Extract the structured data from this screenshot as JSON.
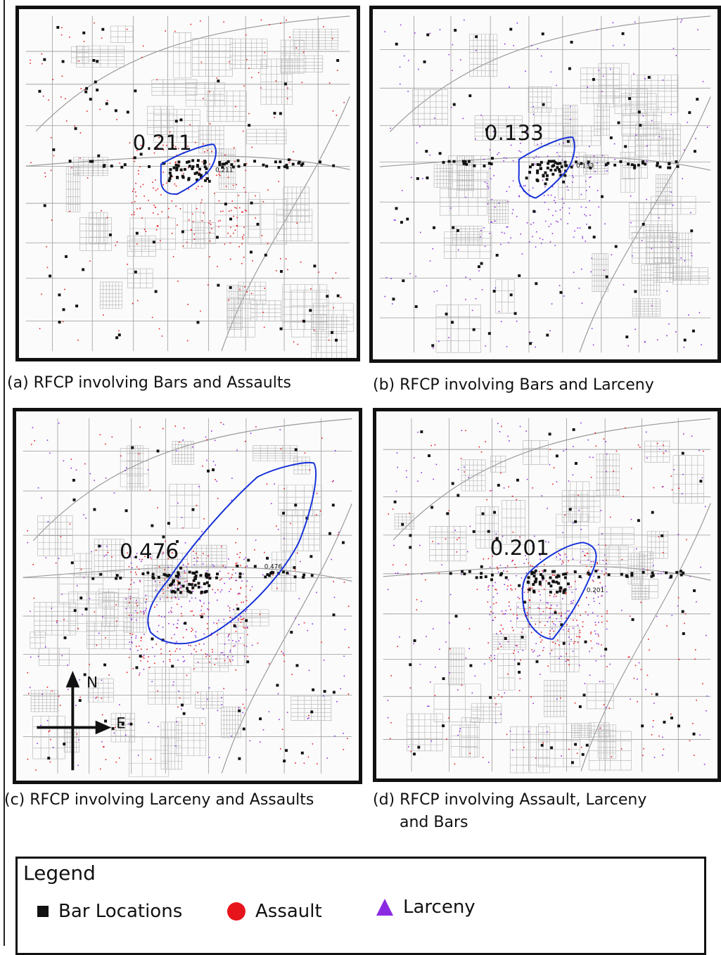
{
  "panels": [
    {
      "id": "a",
      "caption": "(a) RFCP involving Bars and Assaults",
      "score_label": "0.211",
      "small_label": "0.211",
      "incidents": [
        "assault"
      ]
    },
    {
      "id": "b",
      "caption": "(b) RFCP involving Bars and Larceny",
      "score_label": "0.133",
      "small_label": "0.133",
      "incidents": [
        "larceny"
      ]
    },
    {
      "id": "c",
      "caption": "(c) RFCP involving Larceny and Assaults",
      "score_label": "0.476",
      "small_label": "0.476",
      "incidents": [
        "assault",
        "larceny"
      ]
    },
    {
      "id": "d",
      "caption_line1": "(d) RFCP involving Assault, Larceny",
      "caption_line2": "and Bars",
      "score_label": "0.201",
      "small_label": "0.201",
      "incidents": [
        "assault",
        "larceny"
      ]
    }
  ],
  "compass": {
    "north": "N",
    "east": "E"
  },
  "legend": {
    "title": "Legend",
    "items": [
      {
        "label": "Bar Locations",
        "symbol": "square",
        "color": "#111111"
      },
      {
        "label": "Assault",
        "symbol": "circle",
        "color": "#e8141c"
      },
      {
        "label": "Larceny",
        "symbol": "triangle",
        "color": "#8a2be2"
      }
    ]
  },
  "colors": {
    "roads": "#9a9a9a",
    "polygon": "#1530d8",
    "assault": "#e8141c",
    "larceny": "#8a2be2",
    "bar": "#111111"
  }
}
